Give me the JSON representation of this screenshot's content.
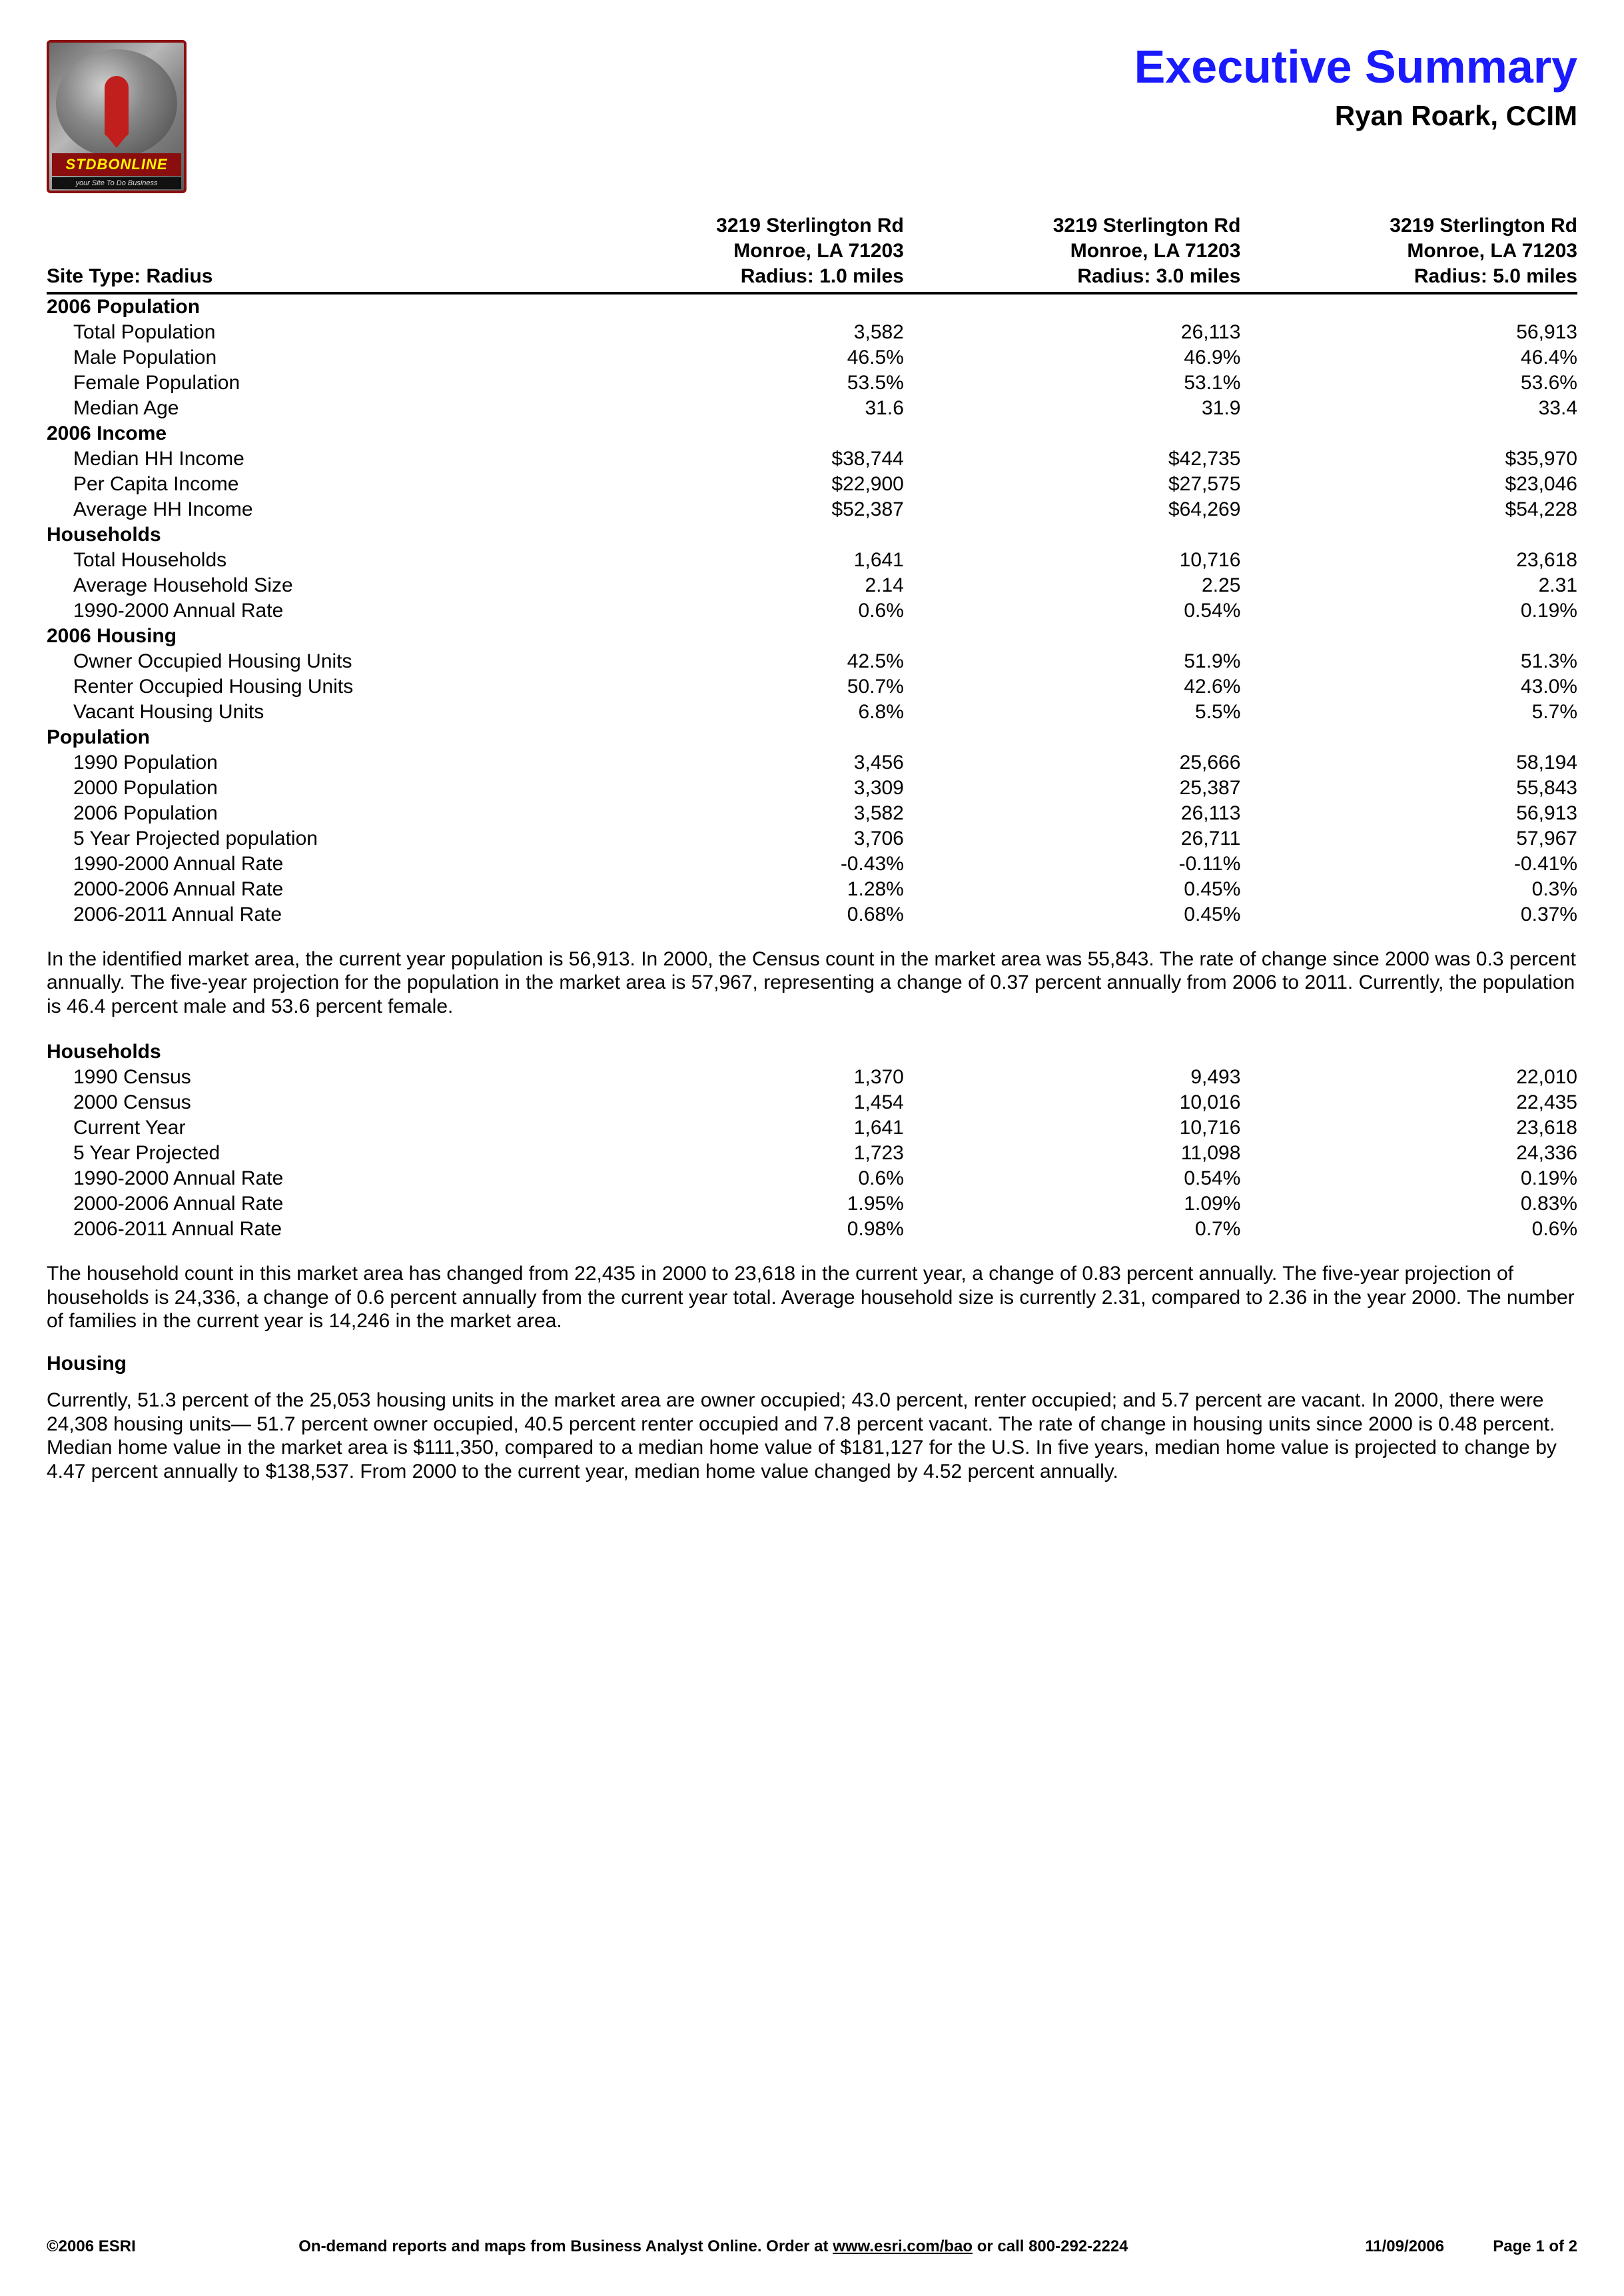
{
  "header": {
    "logo_brand": "STDBONLINE",
    "logo_tagline": "your Site To Do Business",
    "title": "Executive Summary",
    "subtitle": "Ryan Roark, CCIM"
  },
  "columns": {
    "site_type_label": "Site Type:  Radius",
    "addr": "3219 Sterlington Rd",
    "city": "Monroe, LA 71203",
    "r1": "Radius:  1.0 miles",
    "r3": "Radius:  3.0 miles",
    "r5": "Radius:  5.0 miles"
  },
  "sections": [
    {
      "title": "2006 Population",
      "rows": [
        {
          "l": "Total Population",
          "v": [
            "3,582",
            "26,113",
            "56,913"
          ]
        },
        {
          "l": "Male Population",
          "v": [
            "46.5%",
            "46.9%",
            "46.4%"
          ]
        },
        {
          "l": "Female Population",
          "v": [
            "53.5%",
            "53.1%",
            "53.6%"
          ]
        },
        {
          "l": "Median Age",
          "v": [
            "31.6",
            "31.9",
            "33.4"
          ]
        }
      ]
    },
    {
      "title": "2006 Income",
      "rows": [
        {
          "l": "Median HH Income",
          "v": [
            "$38,744",
            "$42,735",
            "$35,970"
          ]
        },
        {
          "l": "Per Capita Income",
          "v": [
            "$22,900",
            "$27,575",
            "$23,046"
          ]
        },
        {
          "l": "Average HH Income",
          "v": [
            "$52,387",
            "$64,269",
            "$54,228"
          ]
        }
      ]
    },
    {
      "title": "Households",
      "rows": [
        {
          "l": "Total Households",
          "v": [
            "1,641",
            "10,716",
            "23,618"
          ]
        },
        {
          "l": "Average Household Size",
          "v": [
            "2.14",
            "2.25",
            "2.31"
          ]
        },
        {
          "l": "1990-2000 Annual Rate",
          "v": [
            "0.6%",
            "0.54%",
            "0.19%"
          ]
        }
      ]
    },
    {
      "title": "2006 Housing",
      "rows": [
        {
          "l": "Owner Occupied Housing Units",
          "v": [
            "42.5%",
            "51.9%",
            "51.3%"
          ]
        },
        {
          "l": "Renter Occupied Housing Units",
          "v": [
            "50.7%",
            "42.6%",
            "43.0%"
          ]
        },
        {
          "l": "Vacant Housing Units",
          "v": [
            "6.8%",
            "5.5%",
            "5.7%"
          ]
        }
      ]
    },
    {
      "title": "Population",
      "rows": [
        {
          "l": "1990 Population",
          "v": [
            "3,456",
            "25,666",
            "58,194"
          ]
        },
        {
          "l": "2000 Population",
          "v": [
            "3,309",
            "25,387",
            "55,843"
          ]
        },
        {
          "l": "2006 Population",
          "v": [
            "3,582",
            "26,113",
            "56,913"
          ]
        },
        {
          "l": "5 Year Projected population",
          "v": [
            "3,706",
            "26,711",
            "57,967"
          ]
        },
        {
          "l": "1990-2000 Annual Rate",
          "v": [
            "-0.43%",
            "-0.11%",
            "-0.41%"
          ]
        },
        {
          "l": "2000-2006 Annual Rate",
          "v": [
            "1.28%",
            "0.45%",
            "0.3%"
          ]
        },
        {
          "l": "2006-2011 Annual Rate",
          "v": [
            "0.68%",
            "0.45%",
            "0.37%"
          ]
        }
      ]
    }
  ],
  "para1": "In the identified market area, the current year population is 56,913. In 2000, the Census count in the market area was 55,843. The rate of change since 2000 was 0.3 percent annually. The five-year projection for the population in the market area is 57,967, representing a change of 0.37 percent annually from 2006 to 2011. Currently, the population is 46.4 percent male and 53.6 percent female.",
  "households_section": {
    "title": "Households",
    "rows": [
      {
        "l": "1990 Census",
        "v": [
          "1,370",
          "9,493",
          "22,010"
        ]
      },
      {
        "l": "2000 Census",
        "v": [
          "1,454",
          "10,016",
          "22,435"
        ]
      },
      {
        "l": "Current Year",
        "v": [
          "1,641",
          "10,716",
          "23,618"
        ]
      },
      {
        "l": "5 Year Projected",
        "v": [
          "1,723",
          "11,098",
          "24,336"
        ]
      },
      {
        "l": "1990-2000 Annual Rate",
        "v": [
          "0.6%",
          "0.54%",
          "0.19%"
        ]
      },
      {
        "l": "2000-2006 Annual Rate",
        "v": [
          "1.95%",
          "1.09%",
          "0.83%"
        ]
      },
      {
        "l": "2006-2011 Annual Rate",
        "v": [
          "0.98%",
          "0.7%",
          "0.6%"
        ]
      }
    ]
  },
  "para2": "The household count in this market area has changed from 22,435 in 2000 to 23,618 in the current year, a change of 0.83 percent annually. The five-year projection of households is 24,336, a change of 0.6 percent annually from the current year total. Average household size is currently 2.31, compared to 2.36 in the year 2000. The number of families in the current year is 14,246 in the market area.",
  "housing_label": "Housing",
  "para3": "Currently, 51.3 percent of the 25,053 housing units in the market area are owner occupied; 43.0 percent, renter occupied; and 5.7 percent are vacant. In 2000, there were 24,308 housing units— 51.7 percent owner occupied, 40.5 percent renter occupied and 7.8 percent vacant. The rate of change in housing units since 2000 is 0.48 percent. Median home value in the market area is $111,350, compared to a median home value of $181,127 for the U.S. In five years, median home value is projected to change by 4.47 percent annually to $138,537. From 2000 to the current year, median home value changed by 4.52 percent annually.",
  "footer": {
    "copyright": "©2006 ESRI",
    "mid_pre": "On-demand reports and maps from Business Analyst Online. Order at ",
    "mid_link": "www.esri.com/bao",
    "mid_post": " or call 800-292-2224",
    "date": "11/09/2006",
    "page": "Page 1 of 2"
  }
}
